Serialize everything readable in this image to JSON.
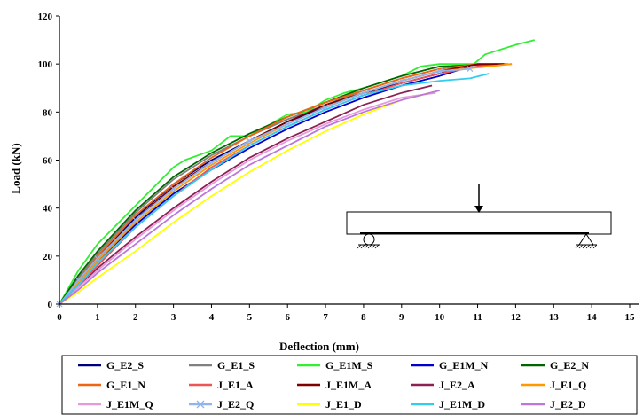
{
  "chart_data": {
    "type": "line",
    "title": "",
    "xlabel": "Deflection (mm)",
    "ylabel": "Load (kN)",
    "xlim": [
      0,
      15
    ],
    "ylim": [
      0,
      120
    ],
    "xticks": [
      0,
      1,
      2,
      3,
      4,
      5,
      6,
      7,
      8,
      9,
      10,
      11,
      12,
      13,
      14,
      15
    ],
    "yticks": [
      0,
      20,
      40,
      60,
      80,
      100,
      120
    ],
    "grid": false,
    "legend_position": "bottom",
    "series": [
      {
        "name": "G_E2_S",
        "color": "#00007f",
        "marker": "none",
        "points": [
          [
            0,
            0
          ],
          [
            0.5,
            10
          ],
          [
            1,
            20
          ],
          [
            2,
            36
          ],
          [
            3,
            50
          ],
          [
            4,
            60
          ],
          [
            5,
            68
          ],
          [
            6,
            76
          ],
          [
            7,
            82
          ],
          [
            8,
            88
          ],
          [
            9,
            92
          ],
          [
            10,
            96
          ],
          [
            10.8,
            100
          ]
        ]
      },
      {
        "name": "G_E1_S",
        "color": "#808080",
        "marker": "none",
        "points": [
          [
            0,
            0
          ],
          [
            0.5,
            11
          ],
          [
            1,
            21
          ],
          [
            2,
            38
          ],
          [
            3,
            52
          ],
          [
            4,
            62
          ],
          [
            5,
            70
          ],
          [
            6,
            77
          ],
          [
            7,
            83
          ],
          [
            8,
            89
          ],
          [
            9,
            94
          ],
          [
            10,
            98
          ],
          [
            11,
            100
          ]
        ]
      },
      {
        "name": "G_E1M_S",
        "color": "#33ee33",
        "marker": "none",
        "points": [
          [
            0,
            0
          ],
          [
            0.5,
            14
          ],
          [
            1,
            25
          ],
          [
            2,
            41
          ],
          [
            3,
            57
          ],
          [
            3.3,
            60
          ],
          [
            4,
            64
          ],
          [
            4.5,
            70
          ],
          [
            5,
            70
          ],
          [
            6,
            79
          ],
          [
            6.5,
            80
          ],
          [
            7,
            85
          ],
          [
            7.5,
            88
          ],
          [
            8,
            90
          ],
          [
            9,
            95
          ],
          [
            9.5,
            99
          ],
          [
            10,
            100
          ],
          [
            10.9,
            100
          ],
          [
            11.2,
            104
          ],
          [
            12,
            108
          ],
          [
            12.5,
            110
          ]
        ]
      },
      {
        "name": "G_E1M_N",
        "color": "#0000cc",
        "marker": "none",
        "points": [
          [
            0,
            0
          ],
          [
            0.5,
            9
          ],
          [
            1,
            18
          ],
          [
            2,
            33
          ],
          [
            3,
            46
          ],
          [
            4,
            56
          ],
          [
            5,
            65
          ],
          [
            6,
            73
          ],
          [
            7,
            80
          ],
          [
            8,
            86
          ],
          [
            9,
            91
          ],
          [
            10,
            95
          ],
          [
            10.8,
            99
          ]
        ]
      },
      {
        "name": "G_E2_N",
        "color": "#006400",
        "marker": "none",
        "points": [
          [
            0,
            0
          ],
          [
            0.5,
            12
          ],
          [
            1,
            22
          ],
          [
            2,
            39
          ],
          [
            3,
            53
          ],
          [
            4,
            63
          ],
          [
            5,
            71
          ],
          [
            6,
            78
          ],
          [
            7,
            84
          ],
          [
            8,
            90
          ],
          [
            9,
            95
          ],
          [
            10,
            99
          ],
          [
            11.5,
            100
          ]
        ]
      },
      {
        "name": "G_E1_N",
        "color": "#ee6611",
        "marker": "none",
        "points": [
          [
            0,
            0
          ],
          [
            0.5,
            10
          ],
          [
            1,
            20
          ],
          [
            2,
            37
          ],
          [
            3,
            50
          ],
          [
            4,
            61
          ],
          [
            5,
            70
          ],
          [
            6,
            78
          ],
          [
            7,
            84
          ],
          [
            8,
            89
          ],
          [
            9,
            94
          ],
          [
            10,
            98
          ],
          [
            11,
            100
          ],
          [
            11.8,
            100
          ]
        ]
      },
      {
        "name": "J_E1_A",
        "color": "#ee5555",
        "marker": "none",
        "points": [
          [
            0,
            0
          ],
          [
            0.5,
            8
          ],
          [
            1,
            16
          ],
          [
            2,
            32
          ],
          [
            3,
            45
          ],
          [
            4,
            57
          ],
          [
            5,
            66
          ],
          [
            6,
            74
          ],
          [
            7,
            81
          ],
          [
            8,
            87
          ],
          [
            9,
            92
          ],
          [
            10,
            96
          ],
          [
            11,
            99
          ],
          [
            11.9,
            100
          ]
        ]
      },
      {
        "name": "J_E1M_A",
        "color": "#7f0000",
        "marker": "none",
        "points": [
          [
            0,
            0
          ],
          [
            0.5,
            10
          ],
          [
            1,
            19
          ],
          [
            2,
            35
          ],
          [
            3,
            49
          ],
          [
            4,
            59
          ],
          [
            5,
            68
          ],
          [
            6,
            76
          ],
          [
            7,
            83
          ],
          [
            8,
            88
          ],
          [
            9,
            93
          ],
          [
            10,
            97
          ],
          [
            11,
            100
          ],
          [
            11.7,
            100
          ]
        ]
      },
      {
        "name": "J_E2_A",
        "color": "#8b2252",
        "marker": "none",
        "points": [
          [
            0,
            0
          ],
          [
            0.5,
            7
          ],
          [
            1,
            15
          ],
          [
            2,
            28
          ],
          [
            3,
            40
          ],
          [
            4,
            51
          ],
          [
            5,
            61
          ],
          [
            6,
            69
          ],
          [
            7,
            76
          ],
          [
            8,
            83
          ],
          [
            9,
            88
          ],
          [
            9.8,
            91
          ]
        ]
      },
      {
        "name": "J_E1_Q",
        "color": "#ff9900",
        "marker": "none",
        "points": [
          [
            0,
            0
          ],
          [
            0.5,
            9
          ],
          [
            1,
            18
          ],
          [
            2,
            34
          ],
          [
            3,
            47
          ],
          [
            4,
            58
          ],
          [
            5,
            67
          ],
          [
            6,
            75
          ],
          [
            7,
            82
          ],
          [
            8,
            88
          ],
          [
            9,
            93
          ],
          [
            10,
            97
          ],
          [
            11.9,
            100
          ]
        ]
      },
      {
        "name": "J_E1M_Q",
        "color": "#e699dd",
        "marker": "none",
        "points": [
          [
            0,
            0
          ],
          [
            0.5,
            7
          ],
          [
            1,
            14
          ],
          [
            2,
            27
          ],
          [
            3,
            39
          ],
          [
            4,
            50
          ],
          [
            5,
            60
          ],
          [
            6,
            68
          ],
          [
            7,
            75
          ],
          [
            8,
            81
          ],
          [
            9,
            86
          ],
          [
            9.9,
            88
          ]
        ]
      },
      {
        "name": "J_E2_Q",
        "color": "#8fb4ee",
        "marker": "x",
        "points": [
          [
            0,
            0
          ],
          [
            0.5,
            10
          ],
          [
            1,
            19
          ],
          [
            2,
            35
          ],
          [
            3,
            48
          ],
          [
            4,
            59
          ],
          [
            5,
            68
          ],
          [
            6,
            75
          ],
          [
            7,
            82
          ],
          [
            8,
            88
          ],
          [
            9,
            93
          ],
          [
            10,
            97
          ],
          [
            10.8,
            98
          ]
        ]
      },
      {
        "name": "J_E1_D",
        "color": "#ffff00",
        "marker": "none",
        "points": [
          [
            0,
            0
          ],
          [
            0.5,
            5
          ],
          [
            1,
            11
          ],
          [
            2,
            22
          ],
          [
            3,
            34
          ],
          [
            4,
            45
          ],
          [
            5,
            55
          ],
          [
            6,
            64
          ],
          [
            7,
            72
          ],
          [
            8,
            79
          ],
          [
            9,
            85
          ],
          [
            10,
            89
          ]
        ]
      },
      {
        "name": "J_E1M_D",
        "color": "#33ccee",
        "marker": "none",
        "points": [
          [
            0,
            0
          ],
          [
            0.5,
            8
          ],
          [
            1,
            17
          ],
          [
            2,
            32
          ],
          [
            3,
            45
          ],
          [
            4,
            56
          ],
          [
            5,
            66
          ],
          [
            6,
            74
          ],
          [
            7,
            81
          ],
          [
            8,
            87
          ],
          [
            9,
            91
          ],
          [
            10,
            93
          ],
          [
            10.8,
            94
          ],
          [
            11.3,
            96
          ]
        ]
      },
      {
        "name": "J_E2_D",
        "color": "#bb77dd",
        "marker": "none",
        "points": [
          [
            0,
            0
          ],
          [
            0.5,
            6
          ],
          [
            1,
            13
          ],
          [
            2,
            25
          ],
          [
            3,
            37
          ],
          [
            4,
            48
          ],
          [
            5,
            58
          ],
          [
            6,
            66
          ],
          [
            7,
            74
          ],
          [
            8,
            80
          ],
          [
            9,
            85
          ],
          [
            10,
            89
          ]
        ]
      }
    ]
  }
}
